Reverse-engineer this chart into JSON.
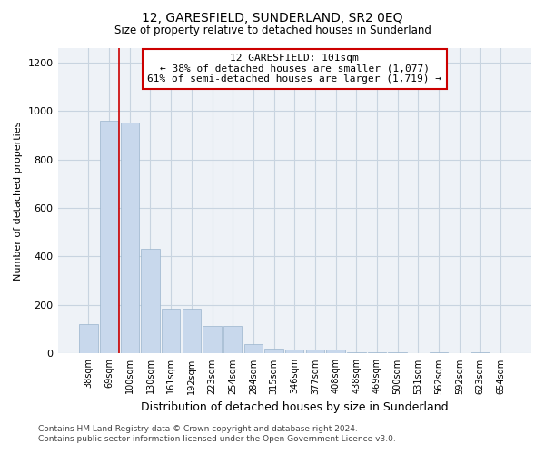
{
  "title": "12, GARESFIELD, SUNDERLAND, SR2 0EQ",
  "subtitle": "Size of property relative to detached houses in Sunderland",
  "xlabel": "Distribution of detached houses by size in Sunderland",
  "ylabel": "Number of detached properties",
  "categories": [
    "38sqm",
    "69sqm",
    "100sqm",
    "130sqm",
    "161sqm",
    "192sqm",
    "223sqm",
    "254sqm",
    "284sqm",
    "315sqm",
    "346sqm",
    "377sqm",
    "408sqm",
    "438sqm",
    "469sqm",
    "500sqm",
    "531sqm",
    "562sqm",
    "592sqm",
    "623sqm",
    "654sqm"
  ],
  "values": [
    120,
    960,
    950,
    430,
    185,
    185,
    115,
    115,
    40,
    20,
    15,
    15,
    15,
    5,
    5,
    5,
    0,
    5,
    0,
    5,
    0
  ],
  "bar_color": "#c8d8ec",
  "bar_edge_color": "#9ab4cc",
  "red_line_x": 1.5,
  "red_line_color": "#cc0000",
  "annotation_text": "12 GARESFIELD: 101sqm\n← 38% of detached houses are smaller (1,077)\n61% of semi-detached houses are larger (1,719) →",
  "annotation_box_facecolor": "#ffffff",
  "annotation_box_edgecolor": "#cc0000",
  "ylim": [
    0,
    1260
  ],
  "yticks": [
    0,
    200,
    400,
    600,
    800,
    1000,
    1200
  ],
  "footer": "Contains HM Land Registry data © Crown copyright and database right 2024.\nContains public sector information licensed under the Open Government Licence v3.0.",
  "bg_color": "#ffffff",
  "plot_bg_color": "#eef2f7",
  "grid_color": "#c8d4e0"
}
